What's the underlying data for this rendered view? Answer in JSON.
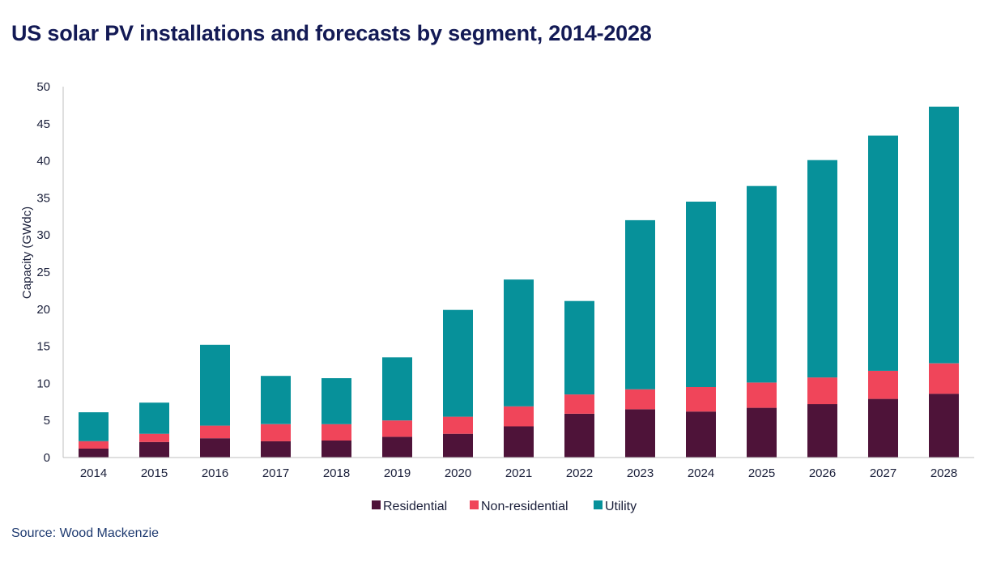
{
  "title": "US solar PV installations and forecasts by segment, 2014-2028",
  "source": "Source: Wood Mackenzie",
  "chart_data": {
    "type": "bar",
    "stacked": true,
    "categories": [
      "2014",
      "2015",
      "2016",
      "2017",
      "2018",
      "2019",
      "2020",
      "2021",
      "2022",
      "2023",
      "2024",
      "2025",
      "2026",
      "2027",
      "2028"
    ],
    "series": [
      {
        "name": "Residential",
        "color": "#4e1339",
        "values": [
          1.2,
          2.1,
          2.6,
          2.2,
          2.3,
          2.8,
          3.2,
          4.2,
          5.9,
          6.5,
          6.2,
          6.7,
          7.2,
          7.9,
          8.6
        ]
      },
      {
        "name": "Non-residential",
        "color": "#f0455a",
        "values": [
          1.0,
          1.1,
          1.7,
          2.3,
          2.2,
          2.2,
          2.3,
          2.7,
          2.6,
          2.7,
          3.3,
          3.4,
          3.6,
          3.8,
          4.1
        ]
      },
      {
        "name": "Utility",
        "color": "#07919a",
        "values": [
          3.9,
          4.2,
          10.9,
          6.5,
          6.2,
          8.5,
          14.4,
          17.1,
          12.6,
          22.8,
          25.0,
          26.5,
          29.3,
          31.7,
          34.6
        ]
      }
    ],
    "ylabel": "Capacity (GWdc)",
    "xlabel": "",
    "ylim": [
      0,
      50
    ],
    "yticks": [
      0,
      5,
      10,
      15,
      20,
      25,
      30,
      35,
      40,
      45,
      50
    ],
    "grid": false,
    "legend": "bottom"
  }
}
